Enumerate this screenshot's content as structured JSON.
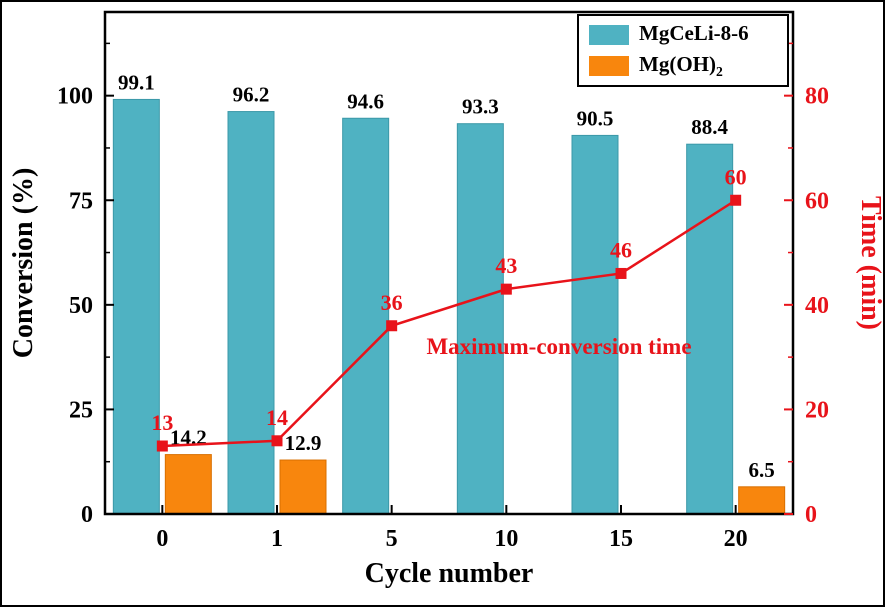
{
  "chart_data": {
    "type": "bar+line",
    "title": "",
    "categories": [
      "0",
      "1",
      "5",
      "10",
      "15",
      "20"
    ],
    "xlabel": "Cycle number",
    "axes": {
      "left": {
        "label": "Conversion (%)",
        "min": 0,
        "max": 120,
        "ticks": [
          0,
          25,
          50,
          75,
          100
        ],
        "minor_step": 12.5,
        "color": "#000000"
      },
      "right": {
        "label": "Time (min)",
        "min": 0,
        "max": 96,
        "ticks": [
          0,
          20,
          40,
          60,
          80
        ],
        "minor_step": 10,
        "color": "#e8131a"
      }
    },
    "series": [
      {
        "name": "MgCeLi-8-6",
        "type": "bar",
        "axis": "left",
        "color": "#4fb2c2",
        "edge": "#3b98a8",
        "values": [
          99.1,
          96.2,
          94.6,
          93.3,
          90.5,
          88.4
        ]
      },
      {
        "name": "Mg(OH)2",
        "type": "bar",
        "axis": "left",
        "color": "#f8860d",
        "edge": "#d96f00",
        "values": [
          14.2,
          12.9,
          null,
          null,
          null,
          6.5
        ]
      },
      {
        "name": "Maximum-conversion time",
        "type": "line",
        "axis": "right",
        "color": "#e8131a",
        "values": [
          13,
          14,
          36,
          43,
          46,
          60
        ]
      }
    ],
    "annotation": {
      "text": "Maximum-conversion time",
      "color": "#e8131a"
    },
    "legend": [
      {
        "label": "MgCeLi-8-6",
        "sub": "",
        "color": "#4fb2c2"
      },
      {
        "label": "Mg(OH)",
        "sub": "2",
        "color": "#f8860d"
      }
    ]
  }
}
